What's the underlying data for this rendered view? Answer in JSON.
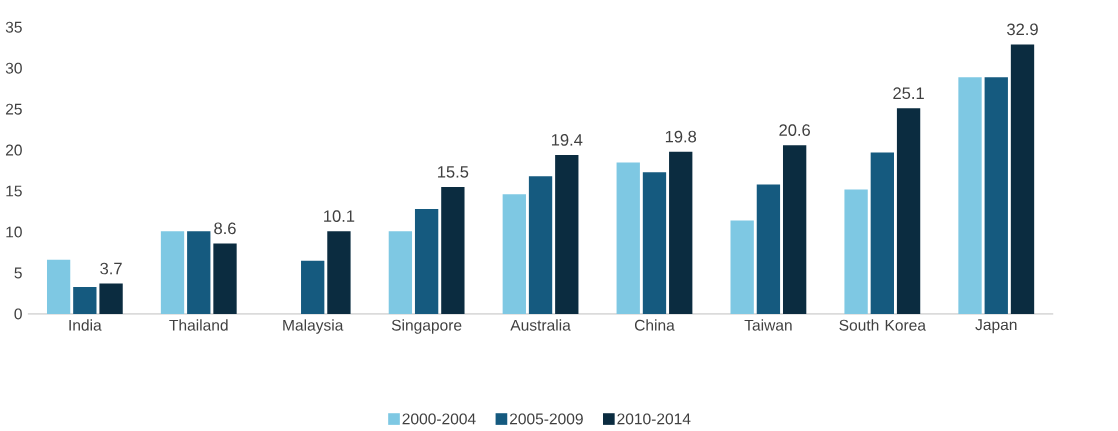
{
  "chart_data": {
    "type": "bar",
    "categories": [
      "India",
      "Thailand",
      "Malaysia",
      "Singapore",
      "Australia",
      "China",
      "Taiwan",
      "South Korea",
      "Japan"
    ],
    "series": [
      {
        "name": "2000-2004",
        "color": "#7ec8e3",
        "values": [
          6.6,
          10.1,
          null,
          10.1,
          14.6,
          18.5,
          11.4,
          15.2,
          28.9
        ]
      },
      {
        "name": "2005-2009",
        "color": "#155a7f",
        "values": [
          3.3,
          10.1,
          6.5,
          12.8,
          16.8,
          17.3,
          15.8,
          19.7,
          28.9
        ]
      },
      {
        "name": "2010-2014",
        "color": "#0b2c40",
        "values": [
          3.7,
          8.6,
          10.1,
          15.5,
          19.4,
          19.8,
          20.6,
          25.1,
          32.9
        ],
        "value_labels": [
          "3.7",
          "8.6",
          "10.1",
          "15.5",
          "19.4",
          "19.8",
          "20.6",
          "25.1",
          "32.9"
        ]
      }
    ],
    "ylim": [
      0,
      35
    ],
    "yticks": [
      0,
      5,
      10,
      15,
      20,
      25,
      30,
      35
    ],
    "grid": false,
    "legend": "bottom"
  }
}
